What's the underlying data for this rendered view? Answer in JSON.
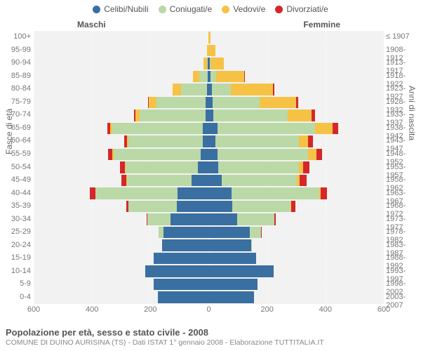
{
  "chart": {
    "type": "population-pyramid",
    "legend": [
      {
        "label": "Celibi/Nubili",
        "color": "#3a6fa1"
      },
      {
        "label": "Coniugati/e",
        "color": "#bad9a6"
      },
      {
        "label": "Vedovi/e",
        "color": "#f6c246"
      },
      {
        "label": "Divorziati/e",
        "color": "#d62728"
      }
    ],
    "header_male": "Maschi",
    "header_female": "Femmine",
    "yaxis_left_title": "Fasce di età",
    "yaxis_right_title": "Anni di nascita",
    "xlim": 600,
    "xticks": [
      600,
      400,
      200,
      0,
      200,
      400,
      600
    ],
    "background_color": "#f2f2f2",
    "grid_color": "#ffffff",
    "rows": [
      {
        "age": "100+",
        "birth": "≤ 1907",
        "m": [
          0,
          0,
          2,
          0
        ],
        "f": [
          0,
          0,
          5,
          0
        ]
      },
      {
        "age": "95-99",
        "birth": "1908-1912",
        "m": [
          0,
          0,
          6,
          0
        ],
        "f": [
          1,
          0,
          22,
          0
        ]
      },
      {
        "age": "90-94",
        "birth": "1913-1917",
        "m": [
          3,
          3,
          12,
          0
        ],
        "f": [
          3,
          4,
          45,
          0
        ]
      },
      {
        "age": "85-89",
        "birth": "1918-1922",
        "m": [
          3,
          30,
          20,
          0
        ],
        "f": [
          6,
          20,
          95,
          3
        ]
      },
      {
        "age": "80-84",
        "birth": "1923-1927",
        "m": [
          6,
          90,
          28,
          0
        ],
        "f": [
          10,
          65,
          145,
          6
        ]
      },
      {
        "age": "75-79",
        "birth": "1928-1932",
        "m": [
          10,
          170,
          25,
          3
        ],
        "f": [
          14,
          160,
          125,
          8
        ]
      },
      {
        "age": "70-74",
        "birth": "1933-1937",
        "m": [
          12,
          225,
          14,
          6
        ],
        "f": [
          16,
          255,
          82,
          12
        ]
      },
      {
        "age": "65-69",
        "birth": "1938-1942",
        "m": [
          20,
          310,
          8,
          10
        ],
        "f": [
          30,
          335,
          60,
          18
        ]
      },
      {
        "age": "60-64",
        "birth": "1943-1947",
        "m": [
          20,
          255,
          5,
          10
        ],
        "f": [
          22,
          288,
          30,
          16
        ]
      },
      {
        "age": "55-59",
        "birth": "1948-1952",
        "m": [
          28,
          298,
          4,
          15
        ],
        "f": [
          30,
          310,
          28,
          20
        ]
      },
      {
        "age": "50-54",
        "birth": "1953-1957",
        "m": [
          38,
          248,
          2,
          16
        ],
        "f": [
          32,
          278,
          14,
          22
        ]
      },
      {
        "age": "45-49",
        "birth": "1958-1962",
        "m": [
          60,
          220,
          2,
          18
        ],
        "f": [
          45,
          258,
          8,
          25
        ]
      },
      {
        "age": "40-44",
        "birth": "1963-1967",
        "m": [
          108,
          280,
          1,
          18
        ],
        "f": [
          78,
          300,
          6,
          22
        ]
      },
      {
        "age": "35-39",
        "birth": "1968-1972",
        "m": [
          110,
          165,
          0,
          8
        ],
        "f": [
          80,
          200,
          2,
          14
        ]
      },
      {
        "age": "30-34",
        "birth": "1973-1977",
        "m": [
          130,
          80,
          0,
          2
        ],
        "f": [
          98,
          126,
          0,
          6
        ]
      },
      {
        "age": "25-29",
        "birth": "1978-1982",
        "m": [
          155,
          18,
          0,
          0
        ],
        "f": [
          140,
          40,
          0,
          2
        ]
      },
      {
        "age": "20-24",
        "birth": "1983-1987",
        "m": [
          160,
          0,
          0,
          0
        ],
        "f": [
          145,
          4,
          0,
          0
        ]
      },
      {
        "age": "15-19",
        "birth": "1988-1992",
        "m": [
          188,
          0,
          0,
          0
        ],
        "f": [
          162,
          0,
          0,
          0
        ]
      },
      {
        "age": "10-14",
        "birth": "1993-1997",
        "m": [
          218,
          0,
          0,
          0
        ],
        "f": [
          222,
          0,
          0,
          0
        ]
      },
      {
        "age": "5-9",
        "birth": "1998-2002",
        "m": [
          190,
          0,
          0,
          0
        ],
        "f": [
          168,
          0,
          0,
          0
        ]
      },
      {
        "age": "0-4",
        "birth": "2003-2007",
        "m": [
          175,
          0,
          0,
          0
        ],
        "f": [
          155,
          0,
          0,
          0
        ]
      }
    ],
    "footer_title": "Popolazione per età, sesso e stato civile - 2008",
    "footer_sub": "COMUNE DI DUINO AURISINA (TS) - Dati ISTAT 1° gennaio 2008 - Elaborazione TUTTITALIA.IT"
  }
}
